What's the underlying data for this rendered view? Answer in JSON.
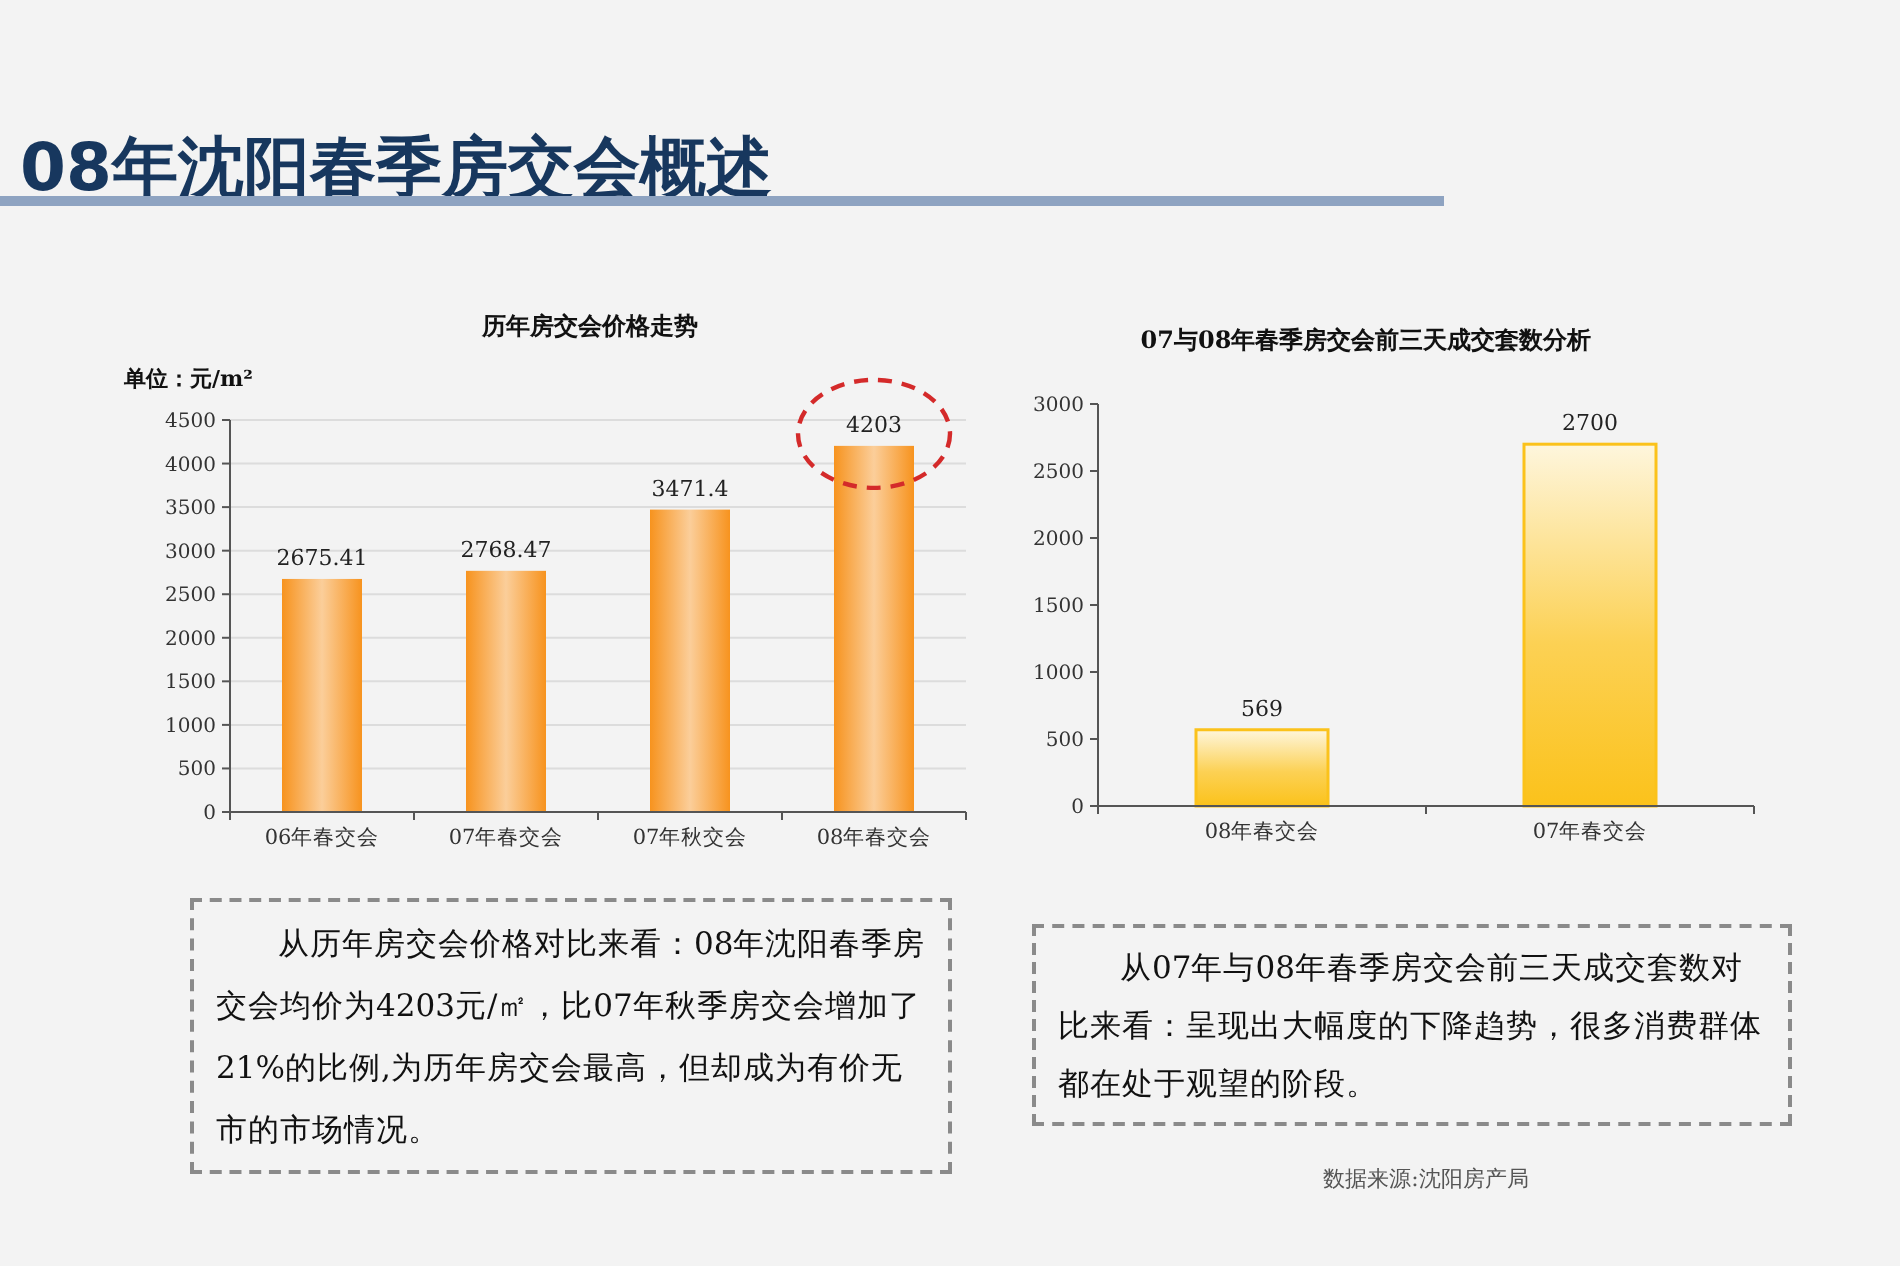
{
  "chart_data": [
    {
      "type": "other",
      "title": "08年沈阳春季房交会概述"
    },
    {
      "type": "bar",
      "title": "历年房交会价格走势",
      "ylabel": "单位：元/m²",
      "categories": [
        "06年春交会",
        "07年春交会",
        "07年秋交会",
        "08年春交会"
      ],
      "values": [
        2675.41,
        2768.47,
        3471.4,
        4203
      ],
      "color": "#f7931e",
      "ylim": [
        0,
        4500
      ],
      "yticks": [
        0,
        500,
        1000,
        1500,
        2000,
        2500,
        3000,
        3500,
        4000,
        4500
      ],
      "grid": "y",
      "data_labels": true,
      "annotations": [
        "从历年房交会价格对比来看：08年沈阳春季房交会均价为4203元/㎡，比07年秋季房交会增加了21%的比例,为历年房交会最高，但却成为有价无市的市场情况。"
      ]
    },
    {
      "type": "bar",
      "title": "07与08年春季房交会前三天成交套数分析",
      "categories": [
        "08年春交会",
        "07年春交会"
      ],
      "values": [
        569,
        2700
      ],
      "color": "#fbc21b",
      "ylim": [
        0,
        3000
      ],
      "yticks": [
        0,
        500,
        1000,
        1500,
        2000,
        2500,
        3000
      ],
      "data_labels": true,
      "annotations": [
        "从07年与08年春季房交会前三天成交套数对比来看：呈现出大幅度的下降趋势，很多消费群体都在处于观望的阶段。",
        "数据来源:沈阳房产局"
      ]
    }
  ]
}
